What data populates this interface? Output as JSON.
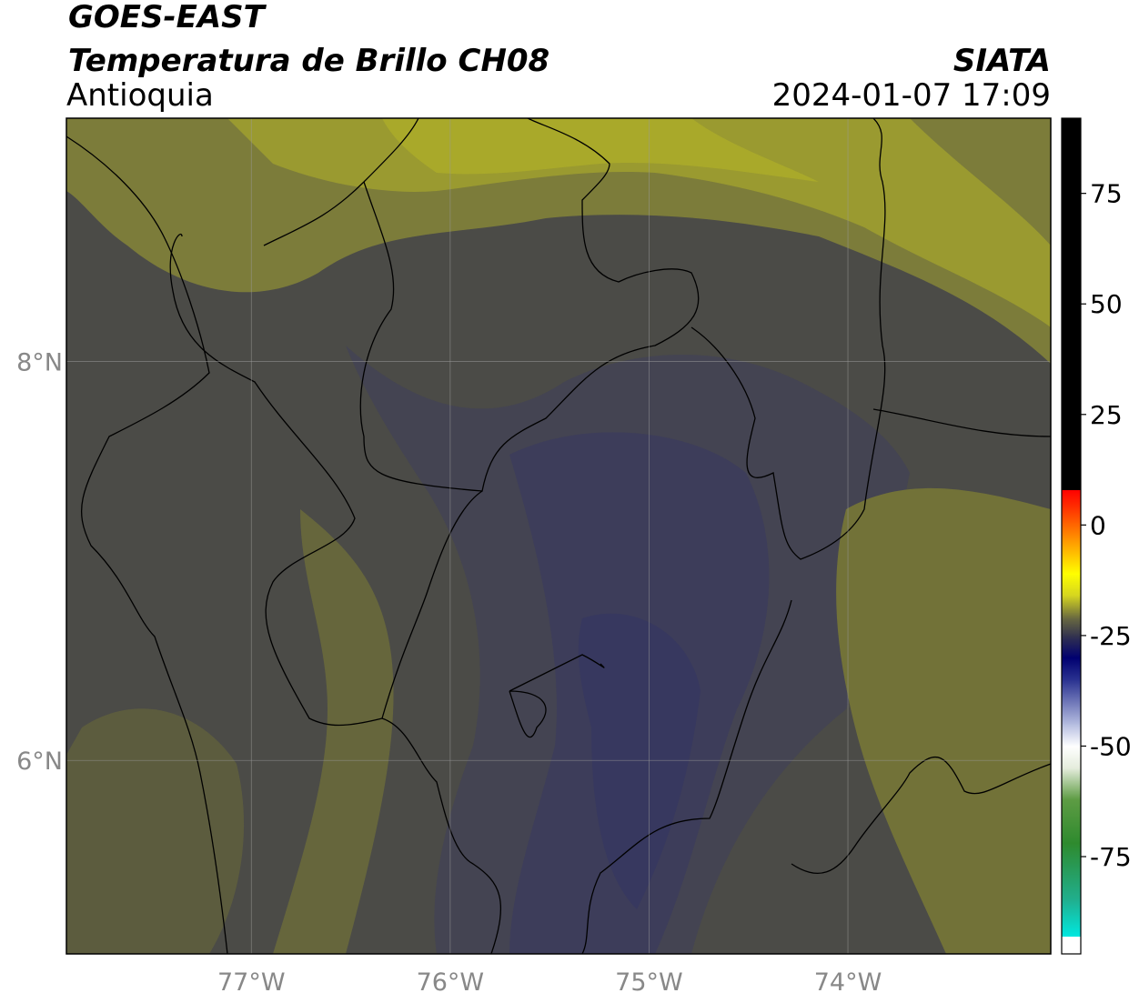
{
  "chart_data": {
    "type": "map",
    "title": "GOES-EAST",
    "subtitle": "Temperatura de Brillo CH08",
    "region": "Antioquia",
    "source": "SIATA",
    "timestamp": "2024-01-07 17:09",
    "xlim": [
      -77.93,
      -72.98
    ],
    "ylim": [
      5.03,
      9.22
    ],
    "xticks": [
      {
        "value": -77,
        "label": "77°W"
      },
      {
        "value": -76,
        "label": "76°W"
      },
      {
        "value": -75,
        "label": "75°W"
      },
      {
        "value": -74,
        "label": "74°W"
      }
    ],
    "yticks": [
      {
        "value": 6,
        "label": "6°N"
      },
      {
        "value": 8,
        "label": "8°N"
      }
    ],
    "grid": true,
    "colorbar": {
      "lim": [
        -97,
        92
      ],
      "ticks": [
        -75,
        -50,
        -25,
        0,
        25,
        50,
        75
      ],
      "stops": [
        {
          "value": -97,
          "color": "#ffffff"
        },
        {
          "value": -93,
          "color": "#ffffff"
        },
        {
          "value": -93,
          "color": "#00e8e0"
        },
        {
          "value": -85,
          "color": "#20b090"
        },
        {
          "value": -72,
          "color": "#2e8a2e"
        },
        {
          "value": -62,
          "color": "#5e9c44"
        },
        {
          "value": -55,
          "color": "#e4ecdc"
        },
        {
          "value": -50,
          "color": "#ffffff"
        },
        {
          "value": -45,
          "color": "#b4bce0"
        },
        {
          "value": -35,
          "color": "#2a3290"
        },
        {
          "value": -30,
          "color": "#000070"
        },
        {
          "value": -25,
          "color": "#34344e"
        },
        {
          "value": -21,
          "color": "#6a6a40"
        },
        {
          "value": -16,
          "color": "#d4d420"
        },
        {
          "value": -11,
          "color": "#ffff00"
        },
        {
          "value": -3,
          "color": "#ff9000"
        },
        {
          "value": 4,
          "color": "#ff3000"
        },
        {
          "value": 8,
          "color": "#ff0000"
        },
        {
          "value": 8,
          "color": "#000000"
        },
        {
          "value": 92,
          "color": "#000000"
        }
      ]
    }
  }
}
